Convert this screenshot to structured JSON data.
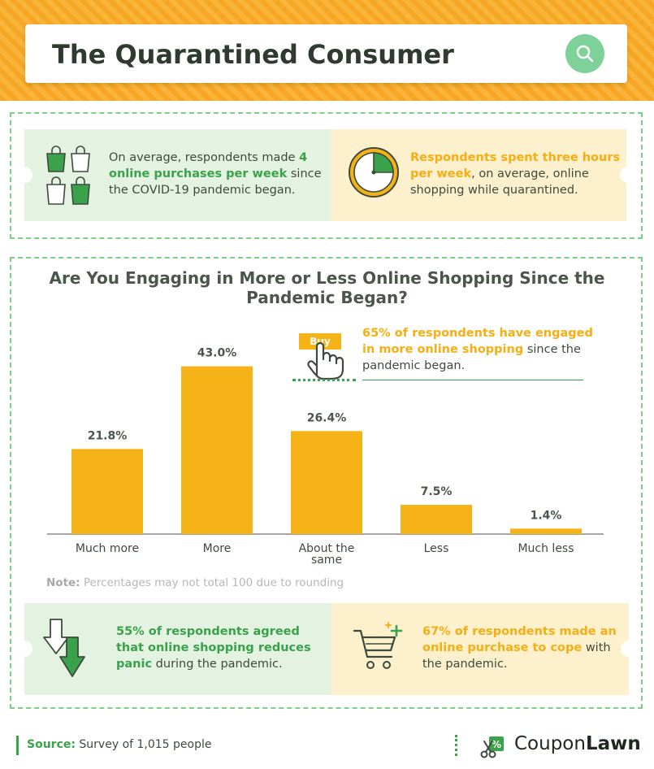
{
  "header": {
    "title": "The Quarantined Consumer"
  },
  "top_panels": {
    "left": {
      "pre": "On average, respondents made ",
      "hl": "4 online purchases per week",
      "post": " since the COVID-19 pandemic began."
    },
    "right": {
      "hl": "Respondents spent three hours per week",
      "post": ", on average, online shopping while quarantined."
    }
  },
  "callout": {
    "buy_label": "Buy",
    "hl": "65% of respondents have engaged in more online shopping",
    "post": " since the pandemic began."
  },
  "note": {
    "label": "Note:",
    "text": " Percentages may not total 100 due to rounding"
  },
  "bottom_panels": {
    "left": {
      "hl": "55% of respondents agreed that online shopping reduces panic",
      "post": " during the pandemic."
    },
    "right": {
      "hl": "67% of respondents made an online purchase to cope",
      "post": " with the pandemic."
    }
  },
  "footer": {
    "source_label": "Source:",
    "source_text": " Survey of 1,015 people",
    "brand_a": "Coupon",
    "brand_b": "Lawn"
  },
  "colors": {
    "bar": "#f5b317",
    "accent_green": "#3aa24a",
    "accent_yellow": "#f5ae14"
  },
  "chart_data": {
    "type": "bar",
    "title": "Are You Engaging in More or Less Online Shopping Since the Pandemic Began?",
    "categories": [
      "Much more",
      "More",
      "About the same",
      "Less",
      "Much less"
    ],
    "category_lines": [
      [
        "Much more"
      ],
      [
        "More"
      ],
      [
        "About the",
        "same"
      ],
      [
        "Less"
      ],
      [
        "Much less"
      ]
    ],
    "values": [
      21.8,
      43.0,
      26.4,
      7.5,
      1.4
    ],
    "value_labels": [
      "21.8%",
      "43.0%",
      "26.4%",
      "7.5%",
      "1.4%"
    ],
    "ylim": [
      0,
      50
    ],
    "xlabel": "",
    "ylabel": "",
    "grid": false,
    "legend": "none"
  }
}
